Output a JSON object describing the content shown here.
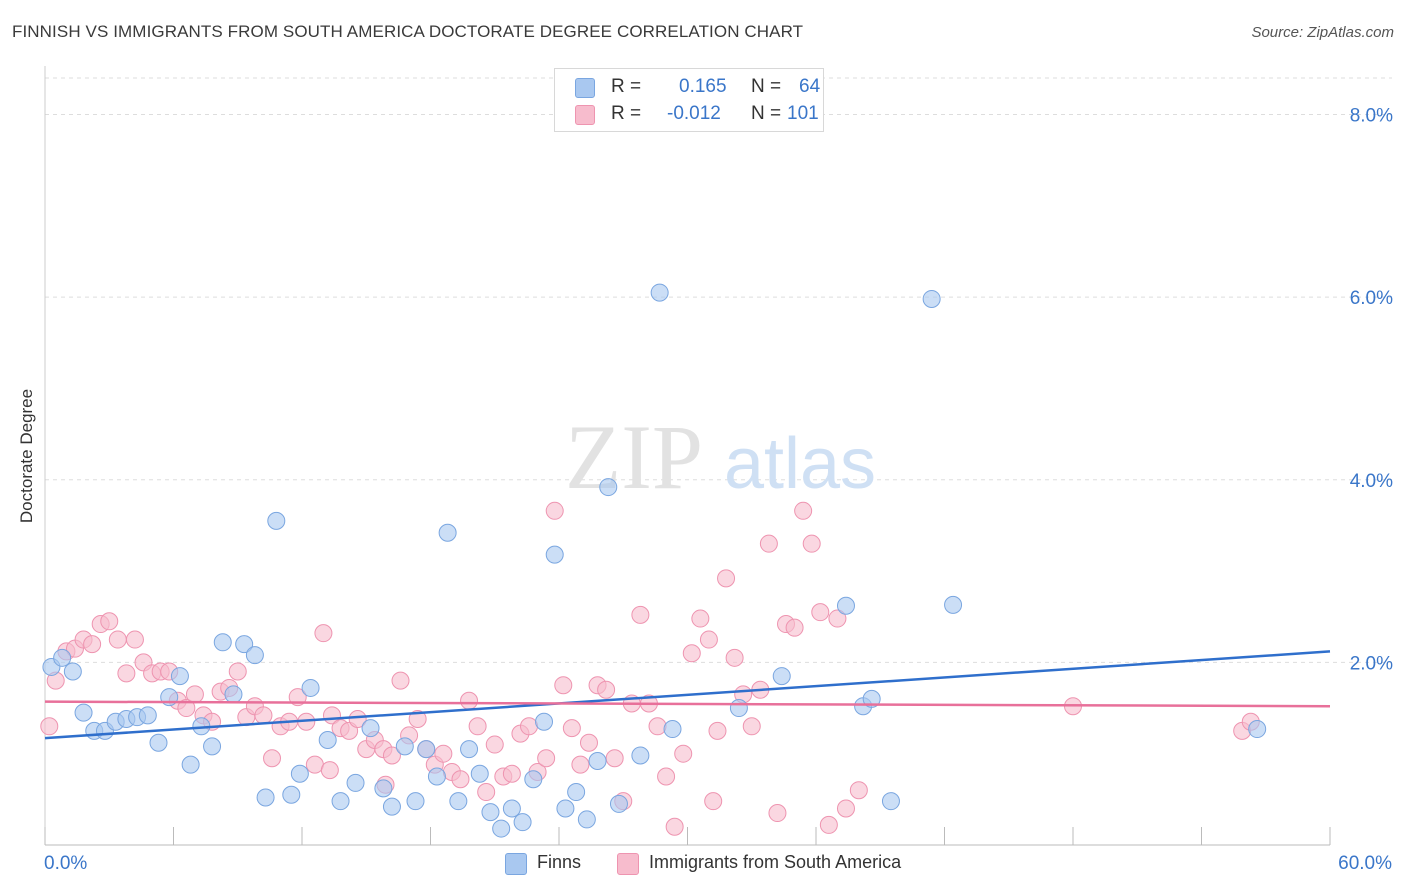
{
  "title": "FINNISH VS IMMIGRANTS FROM SOUTH AMERICA DOCTORATE DEGREE CORRELATION CHART",
  "source": "Source: ZipAtlas.com",
  "watermark": {
    "zip": "ZIP",
    "atlas": "atlas"
  },
  "legend": {
    "r_label": "R =",
    "n_label": "N =",
    "rows": [
      {
        "r": "0.165",
        "n": "64",
        "color": "#a9c8f0",
        "border": "#7aa6e0"
      },
      {
        "r": "-0.012",
        "n": "101",
        "color": "#f7bccd",
        "border": "#ee94b0"
      }
    ]
  },
  "series_labels": [
    "Finns",
    "Immigrants from South America"
  ],
  "chart_data": {
    "type": "scatter",
    "title": "FINNISH VS IMMIGRANTS FROM SOUTH AMERICA DOCTORATE DEGREE CORRELATION CHART",
    "xlabel": "",
    "ylabel": "Doctorate Degree",
    "xlim": [
      0,
      60
    ],
    "ylim": [
      0,
      8.4
    ],
    "x_tick_labels": [
      "0.0%",
      "60.0%"
    ],
    "y_ticks": [
      2,
      4,
      6,
      8
    ],
    "y_tick_labels": [
      "2.0%",
      "4.0%",
      "6.0%",
      "8.0%"
    ],
    "grid": true,
    "legend_position": "top-center",
    "series": [
      {
        "name": "Finns",
        "color": "#a9c8f0",
        "stroke": "#7aa6e0",
        "trend_color": "#2f6fcc",
        "trend": {
          "x": [
            0,
            60
          ],
          "y": [
            1.17,
            2.12
          ]
        },
        "points": [
          [
            0.3,
            1.95
          ],
          [
            0.8,
            2.05
          ],
          [
            1.3,
            1.9
          ],
          [
            1.8,
            1.45
          ],
          [
            2.3,
            1.25
          ],
          [
            2.8,
            1.25
          ],
          [
            3.3,
            1.35
          ],
          [
            3.8,
            1.38
          ],
          [
            4.3,
            1.4
          ],
          [
            4.8,
            1.42
          ],
          [
            5.3,
            1.12
          ],
          [
            5.8,
            1.62
          ],
          [
            6.3,
            1.85
          ],
          [
            6.8,
            0.88
          ],
          [
            7.3,
            1.3
          ],
          [
            7.8,
            1.08
          ],
          [
            8.3,
            2.22
          ],
          [
            8.8,
            1.65
          ],
          [
            9.3,
            2.2
          ],
          [
            9.8,
            2.08
          ],
          [
            10.3,
            0.52
          ],
          [
            10.8,
            3.55
          ],
          [
            11.5,
            0.55
          ],
          [
            11.9,
            0.78
          ],
          [
            12.4,
            1.72
          ],
          [
            13.2,
            1.15
          ],
          [
            13.8,
            0.48
          ],
          [
            14.5,
            0.68
          ],
          [
            15.2,
            1.28
          ],
          [
            15.8,
            0.62
          ],
          [
            16.2,
            0.42
          ],
          [
            16.8,
            1.08
          ],
          [
            17.3,
            0.48
          ],
          [
            17.8,
            1.05
          ],
          [
            18.3,
            0.75
          ],
          [
            18.8,
            3.42
          ],
          [
            19.3,
            0.48
          ],
          [
            19.8,
            1.05
          ],
          [
            20.3,
            0.78
          ],
          [
            20.8,
            0.36
          ],
          [
            21.3,
            0.18
          ],
          [
            21.8,
            0.4
          ],
          [
            22.3,
            0.25
          ],
          [
            22.8,
            0.72
          ],
          [
            23.3,
            1.35
          ],
          [
            23.8,
            3.18
          ],
          [
            24.3,
            0.4
          ],
          [
            24.8,
            0.58
          ],
          [
            25.3,
            0.28
          ],
          [
            25.8,
            0.92
          ],
          [
            26.3,
            3.92
          ],
          [
            26.8,
            0.45
          ],
          [
            27.8,
            0.98
          ],
          [
            28.7,
            6.05
          ],
          [
            29.3,
            1.27
          ],
          [
            32.4,
            1.5
          ],
          [
            34.4,
            1.85
          ],
          [
            37.4,
            2.62
          ],
          [
            38.2,
            1.52
          ],
          [
            38.6,
            1.6
          ],
          [
            39.5,
            0.48
          ],
          [
            41.4,
            5.98
          ],
          [
            42.4,
            2.63
          ],
          [
            56.6,
            1.27
          ]
        ]
      },
      {
        "name": "Immigrants from South America",
        "color": "#f7bccd",
        "stroke": "#ee94b0",
        "trend_color": "#e8709a",
        "trend": {
          "x": [
            0,
            60
          ],
          "y": [
            1.57,
            1.52
          ]
        },
        "points": [
          [
            0.2,
            1.3
          ],
          [
            0.5,
            1.8
          ],
          [
            1.0,
            2.12
          ],
          [
            1.4,
            2.15
          ],
          [
            1.8,
            2.25
          ],
          [
            2.2,
            2.2
          ],
          [
            2.6,
            2.42
          ],
          [
            3.0,
            2.45
          ],
          [
            3.4,
            2.25
          ],
          [
            3.8,
            1.88
          ],
          [
            4.2,
            2.25
          ],
          [
            4.6,
            2.0
          ],
          [
            5.0,
            1.88
          ],
          [
            5.4,
            1.9
          ],
          [
            5.8,
            1.9
          ],
          [
            6.2,
            1.58
          ],
          [
            6.6,
            1.5
          ],
          [
            7.0,
            1.65
          ],
          [
            7.4,
            1.42
          ],
          [
            7.8,
            1.35
          ],
          [
            8.2,
            1.68
          ],
          [
            8.6,
            1.72
          ],
          [
            9.0,
            1.9
          ],
          [
            9.4,
            1.4
          ],
          [
            9.8,
            1.52
          ],
          [
            10.2,
            1.42
          ],
          [
            10.6,
            0.95
          ],
          [
            11.0,
            1.3
          ],
          [
            11.4,
            1.35
          ],
          [
            11.8,
            1.62
          ],
          [
            12.2,
            1.35
          ],
          [
            12.6,
            0.88
          ],
          [
            13.0,
            2.32
          ],
          [
            13.4,
            1.42
          ],
          [
            13.8,
            1.28
          ],
          [
            14.2,
            1.25
          ],
          [
            14.6,
            1.38
          ],
          [
            15.0,
            1.05
          ],
          [
            15.4,
            1.15
          ],
          [
            15.8,
            1.05
          ],
          [
            16.2,
            0.98
          ],
          [
            16.6,
            1.8
          ],
          [
            17.0,
            1.2
          ],
          [
            17.4,
            1.38
          ],
          [
            17.8,
            1.05
          ],
          [
            18.2,
            0.88
          ],
          [
            18.6,
            1.0
          ],
          [
            19.0,
            0.8
          ],
          [
            19.4,
            0.72
          ],
          [
            19.8,
            1.58
          ],
          [
            20.2,
            1.3
          ],
          [
            20.6,
            0.58
          ],
          [
            21.0,
            1.1
          ],
          [
            21.4,
            0.75
          ],
          [
            21.8,
            0.78
          ],
          [
            22.2,
            1.22
          ],
          [
            22.6,
            1.3
          ],
          [
            23.0,
            0.8
          ],
          [
            23.4,
            0.95
          ],
          [
            23.8,
            3.66
          ],
          [
            24.2,
            1.75
          ],
          [
            24.6,
            1.28
          ],
          [
            25.0,
            0.88
          ],
          [
            25.4,
            1.12
          ],
          [
            25.8,
            1.75
          ],
          [
            26.2,
            1.7
          ],
          [
            26.6,
            0.95
          ],
          [
            27.0,
            0.48
          ],
          [
            27.4,
            1.55
          ],
          [
            27.8,
            2.52
          ],
          [
            28.2,
            1.55
          ],
          [
            28.6,
            1.3
          ],
          [
            29.0,
            0.75
          ],
          [
            29.4,
            0.2
          ],
          [
            29.8,
            1.0
          ],
          [
            30.2,
            2.1
          ],
          [
            30.6,
            2.48
          ],
          [
            31.0,
            2.25
          ],
          [
            31.4,
            1.25
          ],
          [
            31.8,
            2.92
          ],
          [
            32.2,
            2.05
          ],
          [
            32.6,
            1.65
          ],
          [
            33.0,
            1.3
          ],
          [
            33.4,
            1.7
          ],
          [
            33.8,
            3.3
          ],
          [
            34.2,
            0.35
          ],
          [
            34.6,
            2.42
          ],
          [
            35.0,
            2.38
          ],
          [
            35.4,
            3.66
          ],
          [
            35.8,
            3.3
          ],
          [
            36.2,
            2.55
          ],
          [
            36.6,
            0.22
          ],
          [
            37.0,
            2.48
          ],
          [
            37.4,
            0.4
          ],
          [
            38.0,
            0.6
          ],
          [
            48.0,
            1.52
          ],
          [
            55.9,
            1.25
          ],
          [
            56.3,
            1.35
          ],
          [
            13.3,
            0.82
          ],
          [
            15.9,
            0.66
          ],
          [
            31.2,
            0.48
          ]
        ]
      }
    ]
  }
}
